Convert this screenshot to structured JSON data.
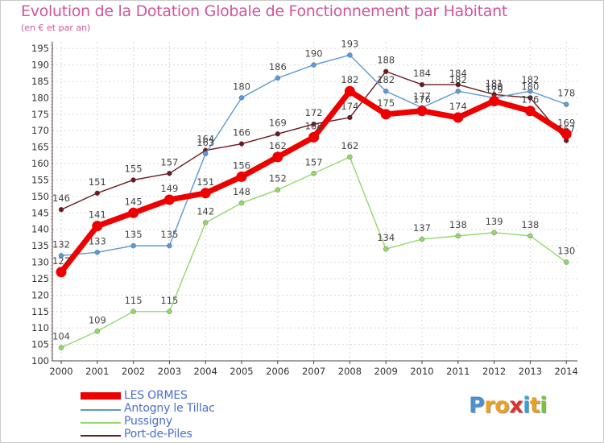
{
  "chart_data": {
    "type": "line",
    "title": "Evolution de la Dotation Globale de Fonctionnement par Habitant",
    "subtitle": "(en € et par an)",
    "x": [
      "2000",
      "2001",
      "2002",
      "2003",
      "2004",
      "2005",
      "2006",
      "2007",
      "2008",
      "2009",
      "2010",
      "2011",
      "2012",
      "2013",
      "2014"
    ],
    "ylim": [
      100,
      197
    ],
    "yticks": [
      100,
      105,
      110,
      115,
      120,
      125,
      130,
      135,
      140,
      145,
      150,
      155,
      160,
      165,
      170,
      175,
      180,
      185,
      190,
      195
    ],
    "grid": true,
    "series": [
      {
        "name": "Port-de-Piles",
        "color": "#6b1a20",
        "values": [
          146,
          151,
          155,
          157,
          164,
          166,
          169,
          172,
          174,
          188,
          184,
          184,
          181,
          180,
          167
        ],
        "labels": [
          "146",
          "151",
          "155",
          "157",
          "164",
          "166",
          "169",
          "172",
          "174",
          "188",
          "184",
          "184",
          "181",
          "180",
          "167"
        ]
      },
      {
        "name": "Antogny le Tillac",
        "color": "#5b9ad4",
        "values": [
          132,
          133,
          135,
          135,
          163,
          180,
          186,
          190,
          193,
          182,
          177,
          182,
          180,
          182,
          178
        ],
        "labels": [
          "132",
          "133",
          "135",
          "135",
          "163",
          "180",
          "186",
          "190",
          "193",
          "182",
          "177",
          "182",
          "180",
          "182",
          "178"
        ]
      },
      {
        "name": "Pussigny",
        "color": "#94d86a",
        "values": [
          104,
          109,
          115,
          115,
          142,
          148,
          152,
          157,
          162,
          134,
          137,
          138,
          139,
          138,
          130
        ],
        "labels": [
          "104",
          "109",
          "115",
          "115",
          "142",
          "148",
          "152",
          "157",
          "162",
          "134",
          "137",
          "138",
          "139",
          "138",
          "130"
        ]
      },
      {
        "name": "LES ORMES",
        "color": "#ee0000",
        "values": [
          127,
          141,
          145,
          149,
          151,
          156,
          162,
          168,
          182,
          175,
          176,
          174,
          179,
          176,
          169
        ],
        "labels": [
          "127",
          "141",
          "145",
          "149",
          "151",
          "156",
          "162",
          "168",
          "182",
          "175",
          "176",
          "174",
          "179",
          "176",
          "169"
        ]
      }
    ]
  },
  "legend": [
    {
      "name": "LES ORMES",
      "color": "#ee0000"
    },
    {
      "name": "Antogny le Tillac",
      "color": "#5b9ad4"
    },
    {
      "name": "Pussigny",
      "color": "#94d86a"
    },
    {
      "name": "Port-de-Piles",
      "color": "#6b1a20"
    }
  ],
  "logo": {
    "letters": [
      "P",
      "r",
      "o",
      "x",
      "i",
      "t",
      "i"
    ],
    "colors": [
      "#4a90d0",
      "#f0a020",
      "#f0a020",
      "#e03030",
      "#3aa0d8",
      "#e8a020",
      "#80c040"
    ]
  }
}
